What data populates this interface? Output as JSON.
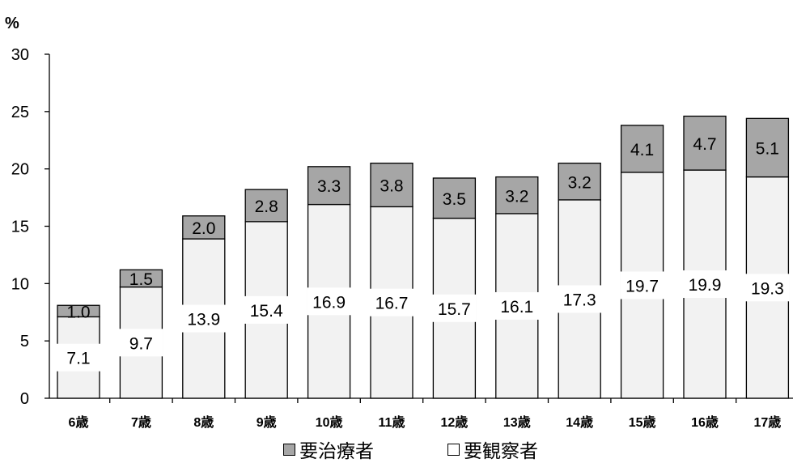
{
  "chart_data": {
    "type": "bar",
    "stacked": true,
    "unit_label": "%",
    "categories": [
      "6歳",
      "7歳",
      "8歳",
      "9歳",
      "10歳",
      "11歳",
      "12歳",
      "13歳",
      "14歳",
      "15歳",
      "16歳",
      "17歳"
    ],
    "series": [
      {
        "name": "□要観察者",
        "color": "#f2f2f2",
        "values": [
          7.1,
          9.7,
          13.9,
          15.4,
          16.9,
          16.7,
          15.7,
          16.1,
          17.3,
          19.7,
          19.9,
          19.3
        ]
      },
      {
        "name": "■要治療者",
        "color": "#a6a6a6",
        "values": [
          1.0,
          1.5,
          2.0,
          2.8,
          3.3,
          3.8,
          3.5,
          3.2,
          3.2,
          4.1,
          4.7,
          5.1
        ]
      }
    ],
    "yticks": [
      0,
      5,
      10,
      15,
      20,
      25,
      30
    ],
    "ylim": [
      0,
      30
    ],
    "grid": false,
    "legend_position": "bottom"
  }
}
